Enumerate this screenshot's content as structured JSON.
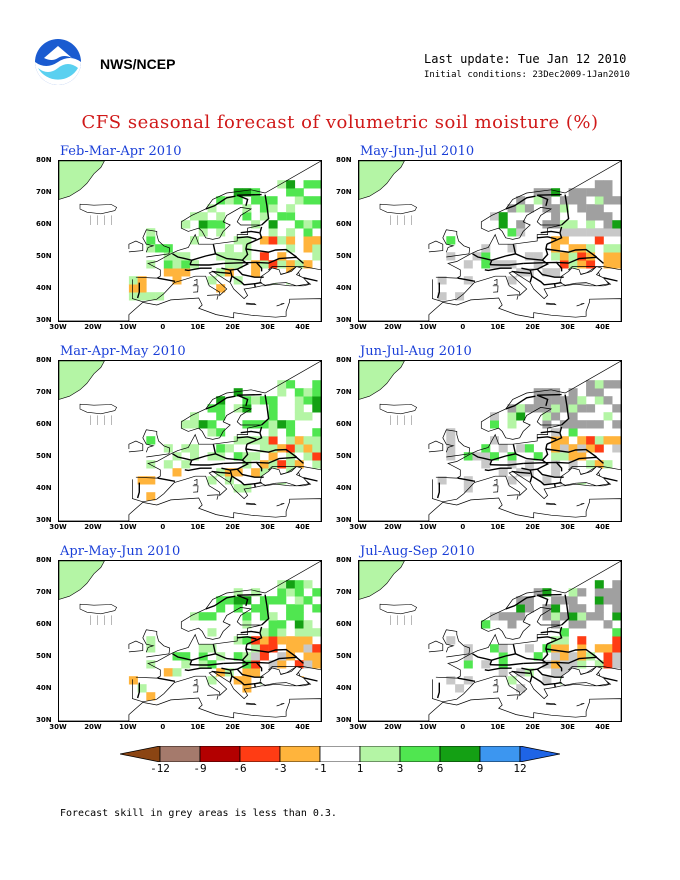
{
  "header": {
    "org": "NWS/NCEP",
    "last_update": "Last update: Tue Jan 12 2010",
    "initial_conditions": "Initial conditions: 23Dec2009-1Jan2010"
  },
  "title": "CFS seasonal forecast of volumetric soil moisture (%)",
  "panels": [
    {
      "title": "Feb-Mar-Apr 2010"
    },
    {
      "title": "May-Jun-Jul 2010"
    },
    {
      "title": "Mar-Apr-May 2010"
    },
    {
      "title": "Jun-Jul-Aug 2010"
    },
    {
      "title": "Apr-May-Jun 2010"
    },
    {
      "title": "Jul-Aug-Sep 2010"
    }
  ],
  "axes": {
    "lat_labels": [
      "80N",
      "70N",
      "60N",
      "50N",
      "40N",
      "30N"
    ],
    "lon_labels": [
      "30W",
      "20W",
      "10W",
      "0",
      "10E",
      "20E",
      "30E",
      "40E"
    ]
  },
  "colorbar": {
    "labels": [
      "-12",
      "-9",
      "-6",
      "-3",
      "-1",
      "1",
      "3",
      "6",
      "9",
      "12"
    ],
    "colors": [
      "#8b4513",
      "#a57a6c",
      "#b30000",
      "#ff3c14",
      "#ffb43c",
      "#ffffff",
      "#b4f5a5",
      "#50e650",
      "#14a014",
      "#3c96f0",
      "#1e64e6"
    ]
  },
  "footnote": "Forecast skill in grey areas is less than 0.3."
}
